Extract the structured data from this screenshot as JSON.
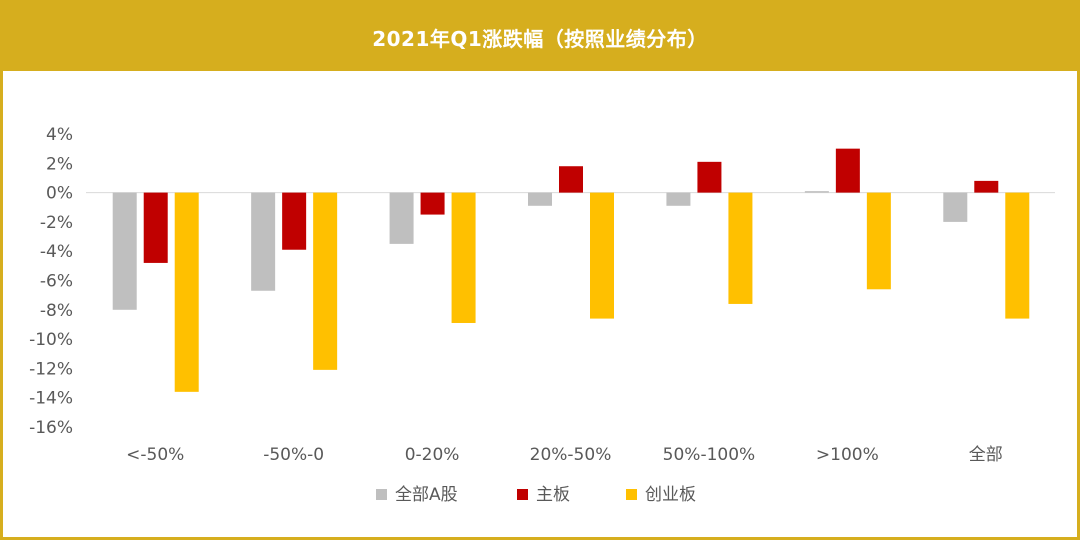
{
  "chart_data": {
    "type": "bar",
    "title": "2021年Q1涨跌幅（按照业绩分布）",
    "categories": [
      "<-50%",
      "-50%-0",
      "0-20%",
      "20%-50%",
      "50%-100%",
      ">100%",
      "全部"
    ],
    "series": [
      {
        "name": "全部A股",
        "color": "#bfbfbf",
        "values": [
          -8.0,
          -6.7,
          -3.5,
          -0.9,
          -0.9,
          0.1,
          -2.0
        ]
      },
      {
        "name": "主板",
        "color": "#c00000",
        "values": [
          -4.8,
          -3.9,
          -1.5,
          1.8,
          2.1,
          3.0,
          0.8
        ]
      },
      {
        "name": "创业板",
        "color": "#ffc000",
        "values": [
          -13.6,
          -12.1,
          -8.9,
          -8.6,
          -7.6,
          -6.6,
          -8.6
        ]
      }
    ],
    "ylim": [
      -16,
      4
    ],
    "yticks": [
      4,
      2,
      0,
      -2,
      -4,
      -6,
      -8,
      -10,
      -12,
      -14,
      -16
    ],
    "ytick_labels": [
      "4%",
      "2%",
      "0%",
      "-2%",
      "-4%",
      "-6%",
      "-8%",
      "-10%",
      "-12%",
      "-14%",
      "-16%"
    ],
    "xlabel": "",
    "ylabel": "",
    "grid": false,
    "legend_position": "bottom"
  }
}
